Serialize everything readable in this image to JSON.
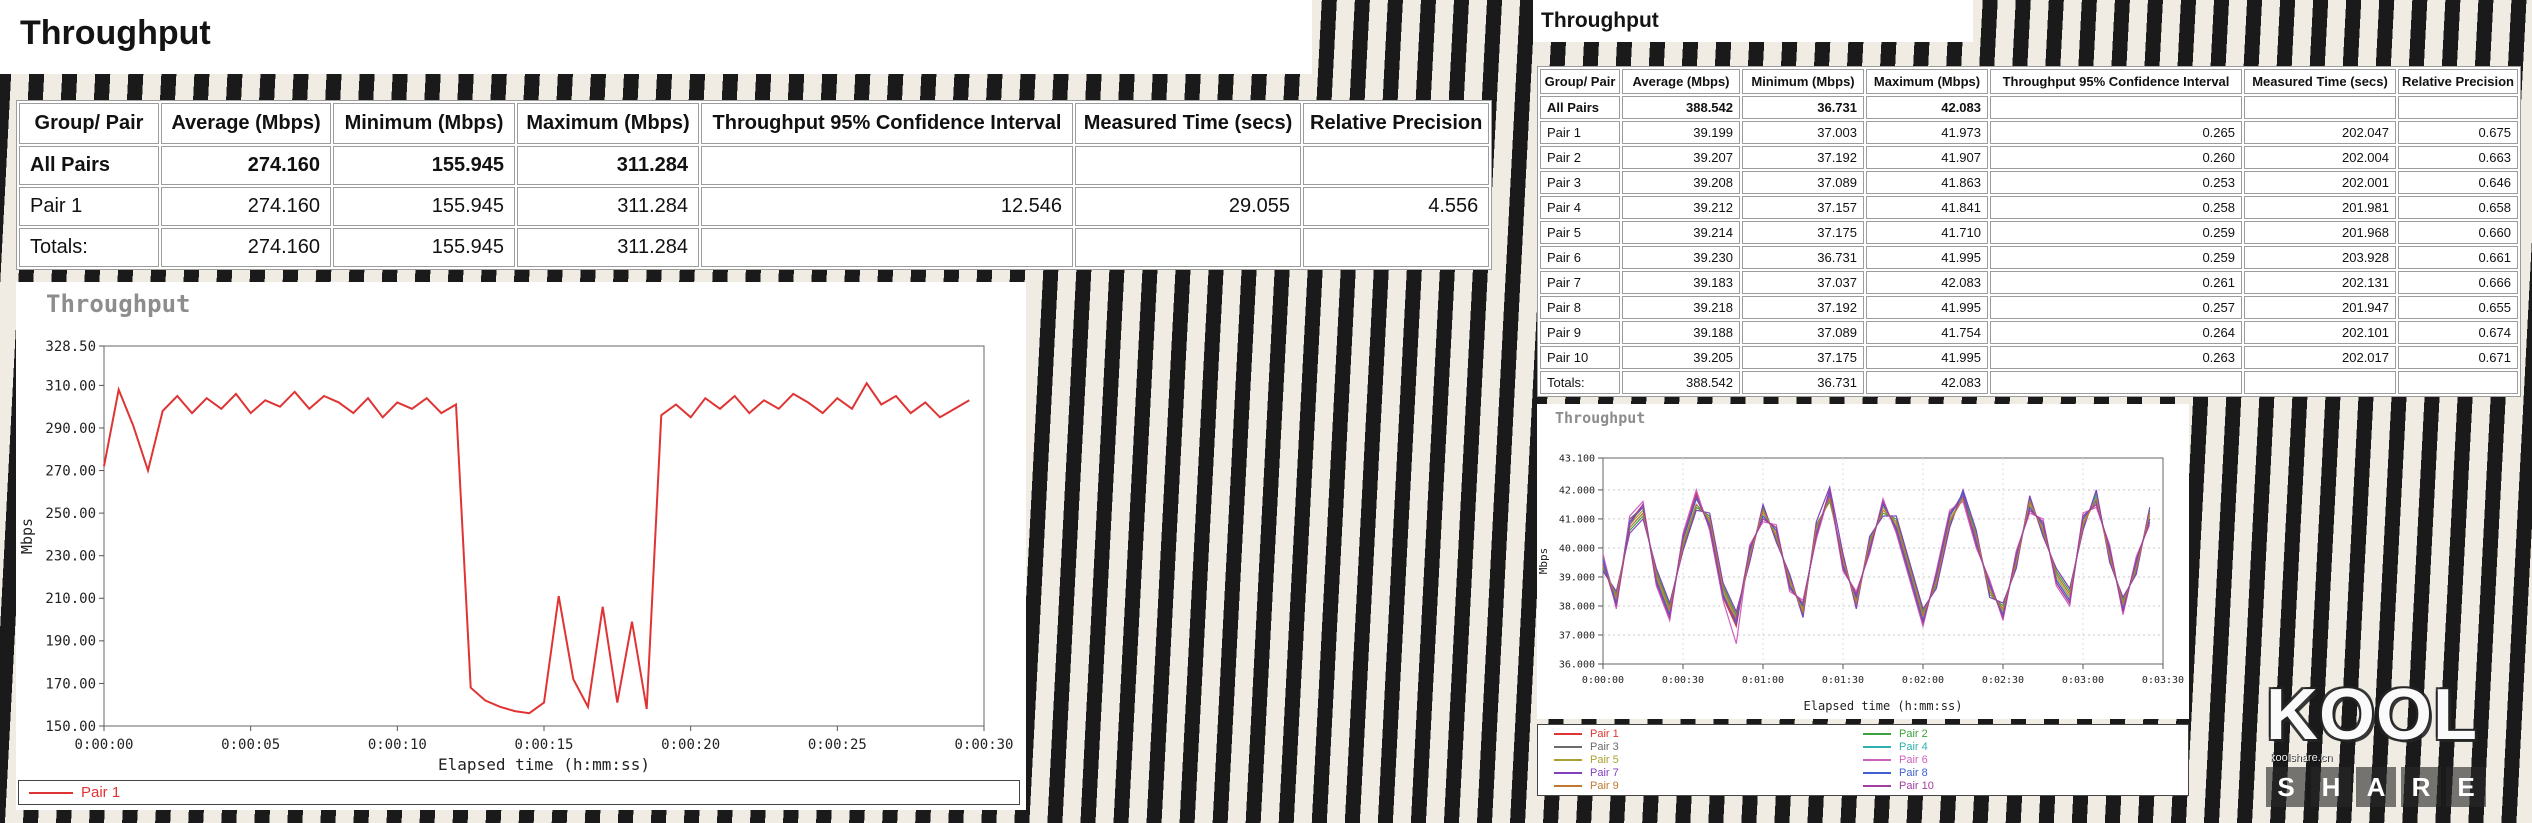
{
  "left_panel": {
    "title": "Throughput",
    "table": {
      "headers": [
        "Group/ Pair",
        "Average (Mbps)",
        "Minimum (Mbps)",
        "Maximum (Mbps)",
        "Throughput 95% Confidence Interval",
        "Measured Time (secs)",
        "Relative Precision"
      ],
      "rows": [
        {
          "bold": true,
          "cells": [
            "All Pairs",
            "274.160",
            "155.945",
            "311.284",
            "",
            "",
            ""
          ]
        },
        {
          "bold": false,
          "cells": [
            "Pair 1",
            "274.160",
            "155.945",
            "311.284",
            "12.546",
            "29.055",
            "4.556"
          ]
        },
        {
          "bold": false,
          "cells": [
            "Totals:",
            "274.160",
            "155.945",
            "311.284",
            "",
            "",
            ""
          ]
        }
      ]
    }
  },
  "right_panel": {
    "title": "Throughput",
    "table": {
      "headers": [
        "Group/ Pair",
        "Average (Mbps)",
        "Minimum (Mbps)",
        "Maximum (Mbps)",
        "Throughput 95% Confidence Interval",
        "Measured Time (secs)",
        "Relative Precision"
      ],
      "rows": [
        {
          "bold": true,
          "cells": [
            "All Pairs",
            "388.542",
            "36.731",
            "42.083",
            "",
            "",
            ""
          ]
        },
        {
          "bold": false,
          "cells": [
            "Pair 1",
            "39.199",
            "37.003",
            "41.973",
            "0.265",
            "202.047",
            "0.675"
          ]
        },
        {
          "bold": false,
          "cells": [
            "Pair 2",
            "39.207",
            "37.192",
            "41.907",
            "0.260",
            "202.004",
            "0.663"
          ]
        },
        {
          "bold": false,
          "cells": [
            "Pair 3",
            "39.208",
            "37.089",
            "41.863",
            "0.253",
            "202.001",
            "0.646"
          ]
        },
        {
          "bold": false,
          "cells": [
            "Pair 4",
            "39.212",
            "37.157",
            "41.841",
            "0.258",
            "201.981",
            "0.658"
          ]
        },
        {
          "bold": false,
          "cells": [
            "Pair 5",
            "39.214",
            "37.175",
            "41.710",
            "0.259",
            "201.968",
            "0.660"
          ]
        },
        {
          "bold": false,
          "cells": [
            "Pair 6",
            "39.230",
            "36.731",
            "41.995",
            "0.259",
            "203.928",
            "0.661"
          ]
        },
        {
          "bold": false,
          "cells": [
            "Pair 7",
            "39.183",
            "37.037",
            "42.083",
            "0.261",
            "202.131",
            "0.666"
          ]
        },
        {
          "bold": false,
          "cells": [
            "Pair 8",
            "39.218",
            "37.192",
            "41.995",
            "0.257",
            "201.947",
            "0.655"
          ]
        },
        {
          "bold": false,
          "cells": [
            "Pair 9",
            "39.188",
            "37.089",
            "41.754",
            "0.264",
            "202.101",
            "0.674"
          ]
        },
        {
          "bold": false,
          "cells": [
            "Pair 10",
            "39.205",
            "37.175",
            "41.995",
            "0.263",
            "202.017",
            "0.671"
          ]
        },
        {
          "bold": false,
          "cells": [
            "Totals:",
            "388.542",
            "36.731",
            "42.083",
            "",
            "",
            ""
          ]
        }
      ]
    }
  },
  "watermark": {
    "top": "KOOL",
    "letters": [
      "S",
      "H",
      "A",
      "R",
      "E"
    ],
    "site": "koolshare.cn"
  },
  "chart_data": [
    {
      "name": "throughput-single-pair",
      "type": "line",
      "title": "Throughput",
      "xlabel": "Elapsed time (h:mm:ss)",
      "ylabel": "Mbps",
      "xlim": [
        0,
        30
      ],
      "ylim": [
        150,
        328.5
      ],
      "grid": false,
      "legend_position": "bottom",
      "x_ticks": [
        {
          "v": 0,
          "label": "0:00:00"
        },
        {
          "v": 5,
          "label": "0:00:05"
        },
        {
          "v": 10,
          "label": "0:00:10"
        },
        {
          "v": 15,
          "label": "0:00:15"
        },
        {
          "v": 20,
          "label": "0:00:20"
        },
        {
          "v": 25,
          "label": "0:00:25"
        },
        {
          "v": 30,
          "label": "0:00:30"
        }
      ],
      "y_ticks": [
        {
          "v": 328.5,
          "label": "328.50"
        },
        {
          "v": 310,
          "label": "310.00"
        },
        {
          "v": 290,
          "label": "290.00"
        },
        {
          "v": 270,
          "label": "270.00"
        },
        {
          "v": 250,
          "label": "250.00"
        },
        {
          "v": 230,
          "label": "230.00"
        },
        {
          "v": 210,
          "label": "210.00"
        },
        {
          "v": 190,
          "label": "190.00"
        },
        {
          "v": 170,
          "label": "170.00"
        },
        {
          "v": 150,
          "label": "150.00"
        }
      ],
      "x_start": 0,
      "x_step": 0.5,
      "series": [
        {
          "name": "Pair 1",
          "color": "#e03434",
          "values": [
            272,
            308,
            291,
            270,
            298,
            305,
            297,
            304,
            299,
            306,
            297,
            303,
            300,
            307,
            299,
            305,
            302,
            297,
            304,
            295,
            302,
            299,
            304,
            297,
            301,
            168,
            162,
            159,
            157,
            156,
            161,
            211,
            172,
            159,
            206,
            161,
            199,
            158,
            296,
            301,
            295,
            304,
            299,
            305,
            297,
            303,
            299,
            306,
            302,
            297,
            304,
            299,
            311,
            301,
            305,
            297,
            302,
            295,
            299,
            303
          ]
        }
      ]
    },
    {
      "name": "throughput-ten-pairs",
      "type": "line",
      "title": "Throughput",
      "xlabel": "Elapsed time (h:mm:ss)",
      "ylabel": "Mbps",
      "xlim": [
        0,
        210
      ],
      "ylim": [
        36,
        43.1
      ],
      "grid": true,
      "legend_position": "bottom",
      "x_ticks": [
        {
          "v": 0,
          "label": "0:00:00"
        },
        {
          "v": 30,
          "label": "0:00:30"
        },
        {
          "v": 60,
          "label": "0:01:00"
        },
        {
          "v": 90,
          "label": "0:01:30"
        },
        {
          "v": 120,
          "label": "0:02:00"
        },
        {
          "v": 150,
          "label": "0:02:30"
        },
        {
          "v": 180,
          "label": "0:03:00"
        },
        {
          "v": 210,
          "label": "0:03:30"
        }
      ],
      "y_ticks": [
        {
          "v": 43.1,
          "label": "43.100"
        },
        {
          "v": 42,
          "label": "42.000"
        },
        {
          "v": 41,
          "label": "41.000"
        },
        {
          "v": 40,
          "label": "40.000"
        },
        {
          "v": 39,
          "label": "39.000"
        },
        {
          "v": 38,
          "label": "38.000"
        },
        {
          "v": 37,
          "label": "37.000"
        },
        {
          "v": 36,
          "label": "36.000"
        }
      ],
      "x_start": 0,
      "x_step": 5,
      "series": [
        {
          "name": "Pair 1",
          "color": "#e03434",
          "values": [
            39.6,
            38.0,
            40.9,
            41.5,
            38.8,
            37.6,
            40.4,
            41.9,
            40.7,
            38.3,
            37.3,
            40.0,
            41.0,
            40.7,
            38.6,
            38.1,
            40.4,
            42.0,
            39.3,
            38.4,
            39.9,
            41.6,
            40.6,
            39.0,
            37.4,
            39.1,
            41.2,
            41.7,
            40.1,
            38.8,
            37.6,
            39.8,
            41.3,
            40.9,
            38.8,
            38.1,
            41.1,
            41.5,
            40.0,
            37.8,
            39.6,
            40.9
          ]
        },
        {
          "name": "Pair 2",
          "color": "#3ca03c",
          "values": [
            39.3,
            38.4,
            40.6,
            41.1,
            39.2,
            38.0,
            40.0,
            41.4,
            41.1,
            38.7,
            37.7,
            39.6,
            41.4,
            40.3,
            39.0,
            37.7,
            40.8,
            41.6,
            39.7,
            38.0,
            40.3,
            41.2,
            41.0,
            39.4,
            37.8,
            38.7,
            40.8,
            41.9,
            40.5,
            38.4,
            38.0,
            39.4,
            41.7,
            40.5,
            39.2,
            38.5,
            40.7,
            41.9,
            39.6,
            38.2,
            39.2,
            41.3
          ]
        },
        {
          "name": "Pair 3",
          "color": "#6b6b6b",
          "values": [
            39.7,
            38.1,
            41.0,
            41.4,
            38.9,
            37.7,
            40.3,
            41.8,
            40.8,
            38.4,
            37.4,
            39.9,
            41.1,
            40.6,
            38.7,
            38.0,
            40.5,
            41.8,
            39.4,
            38.3,
            40.0,
            41.5,
            40.7,
            39.1,
            37.5,
            39.0,
            41.1,
            41.8,
            40.2,
            38.7,
            37.7,
            39.7,
            41.4,
            40.8,
            38.9,
            38.2,
            41.0,
            41.6,
            39.9,
            37.9,
            39.5,
            41.0
          ]
        },
        {
          "name": "Pair 4",
          "color": "#2fb0b0",
          "values": [
            39.4,
            38.3,
            40.7,
            41.2,
            39.1,
            37.9,
            40.1,
            41.5,
            41.0,
            38.6,
            37.6,
            39.7,
            41.3,
            40.4,
            38.9,
            37.8,
            40.7,
            41.7,
            39.6,
            38.1,
            40.2,
            41.3,
            40.9,
            39.3,
            37.7,
            38.8,
            40.9,
            41.8,
            40.4,
            38.5,
            37.9,
            39.5,
            41.6,
            40.6,
            39.1,
            38.4,
            40.8,
            41.8,
            39.7,
            38.1,
            39.3,
            41.2
          ]
        },
        {
          "name": "Pair 5",
          "color": "#aca032",
          "values": [
            39.5,
            38.2,
            40.8,
            41.3,
            39.0,
            37.8,
            40.2,
            41.7,
            40.9,
            38.5,
            37.5,
            39.8,
            41.2,
            40.5,
            38.8,
            37.9,
            40.6,
            41.7,
            39.5,
            38.2,
            40.1,
            41.4,
            40.8,
            39.2,
            37.6,
            38.9,
            41.0,
            41.7,
            40.3,
            38.6,
            37.8,
            39.6,
            41.5,
            40.7,
            39.0,
            38.3,
            40.9,
            41.7,
            39.8,
            38.0,
            39.4,
            41.1
          ]
        },
        {
          "name": "Pair 6",
          "color": "#d060c0",
          "values": [
            39.8,
            37.9,
            41.1,
            41.6,
            38.7,
            37.5,
            40.5,
            42.0,
            40.6,
            38.2,
            36.7,
            40.1,
            40.9,
            40.8,
            38.5,
            38.2,
            40.3,
            41.9,
            39.2,
            38.5,
            39.8,
            41.7,
            40.5,
            38.9,
            37.3,
            39.2,
            41.3,
            41.6,
            40.0,
            38.9,
            37.5,
            39.9,
            41.2,
            41.0,
            38.7,
            38.0,
            41.2,
            41.4,
            40.1,
            37.7,
            39.7,
            40.8
          ]
        },
        {
          "name": "Pair 7",
          "color": "#8040c0",
          "values": [
            39.2,
            38.5,
            40.5,
            41.0,
            39.3,
            38.1,
            39.9,
            41.3,
            41.2,
            38.8,
            37.8,
            39.5,
            41.5,
            40.2,
            39.1,
            37.6,
            40.9,
            42.1,
            39.8,
            37.9,
            40.4,
            41.1,
            41.1,
            39.5,
            37.9,
            38.6,
            40.7,
            42.0,
            40.6,
            38.3,
            38.1,
            39.3,
            41.8,
            40.4,
            39.3,
            38.6,
            40.6,
            42.0,
            39.5,
            38.3,
            39.1,
            41.4
          ]
        },
        {
          "name": "Pair 8",
          "color": "#4060d0",
          "values": [
            39.6,
            38.1,
            40.9,
            41.4,
            38.9,
            37.7,
            40.3,
            41.7,
            40.8,
            38.4,
            37.4,
            39.9,
            41.1,
            40.6,
            38.7,
            38.0,
            40.5,
            41.9,
            39.4,
            38.3,
            40.0,
            41.5,
            40.7,
            39.1,
            37.5,
            39.0,
            41.1,
            41.9,
            40.2,
            38.7,
            37.7,
            39.7,
            41.4,
            40.8,
            38.9,
            38.2,
            41.0,
            41.6,
            39.9,
            37.9,
            39.5,
            41.0
          ]
        },
        {
          "name": "Pair 9",
          "color": "#c07830",
          "values": [
            39.4,
            38.3,
            40.7,
            41.2,
            39.1,
            37.9,
            40.1,
            41.5,
            41.0,
            38.6,
            37.6,
            39.7,
            41.3,
            40.4,
            38.9,
            37.8,
            40.7,
            41.7,
            39.6,
            38.1,
            40.2,
            41.3,
            40.9,
            39.3,
            37.7,
            38.8,
            40.9,
            41.7,
            40.4,
            38.5,
            37.9,
            39.5,
            41.6,
            40.6,
            39.1,
            38.4,
            40.8,
            41.7,
            39.7,
            38.1,
            39.3,
            41.2
          ]
        },
        {
          "name": "Pair 10",
          "color": "#a040a0",
          "values": [
            39.5,
            38.0,
            40.8,
            41.5,
            38.8,
            37.6,
            40.4,
            41.8,
            40.7,
            38.3,
            37.5,
            40.0,
            41.0,
            40.7,
            38.6,
            38.1,
            40.4,
            42.0,
            39.3,
            38.4,
            39.9,
            41.6,
            40.6,
            39.0,
            37.4,
            39.1,
            41.2,
            41.8,
            40.1,
            38.8,
            37.6,
            39.8,
            41.3,
            40.9,
            38.8,
            38.1,
            41.1,
            41.5,
            40.0,
            37.8,
            39.6,
            40.9
          ]
        }
      ]
    }
  ]
}
